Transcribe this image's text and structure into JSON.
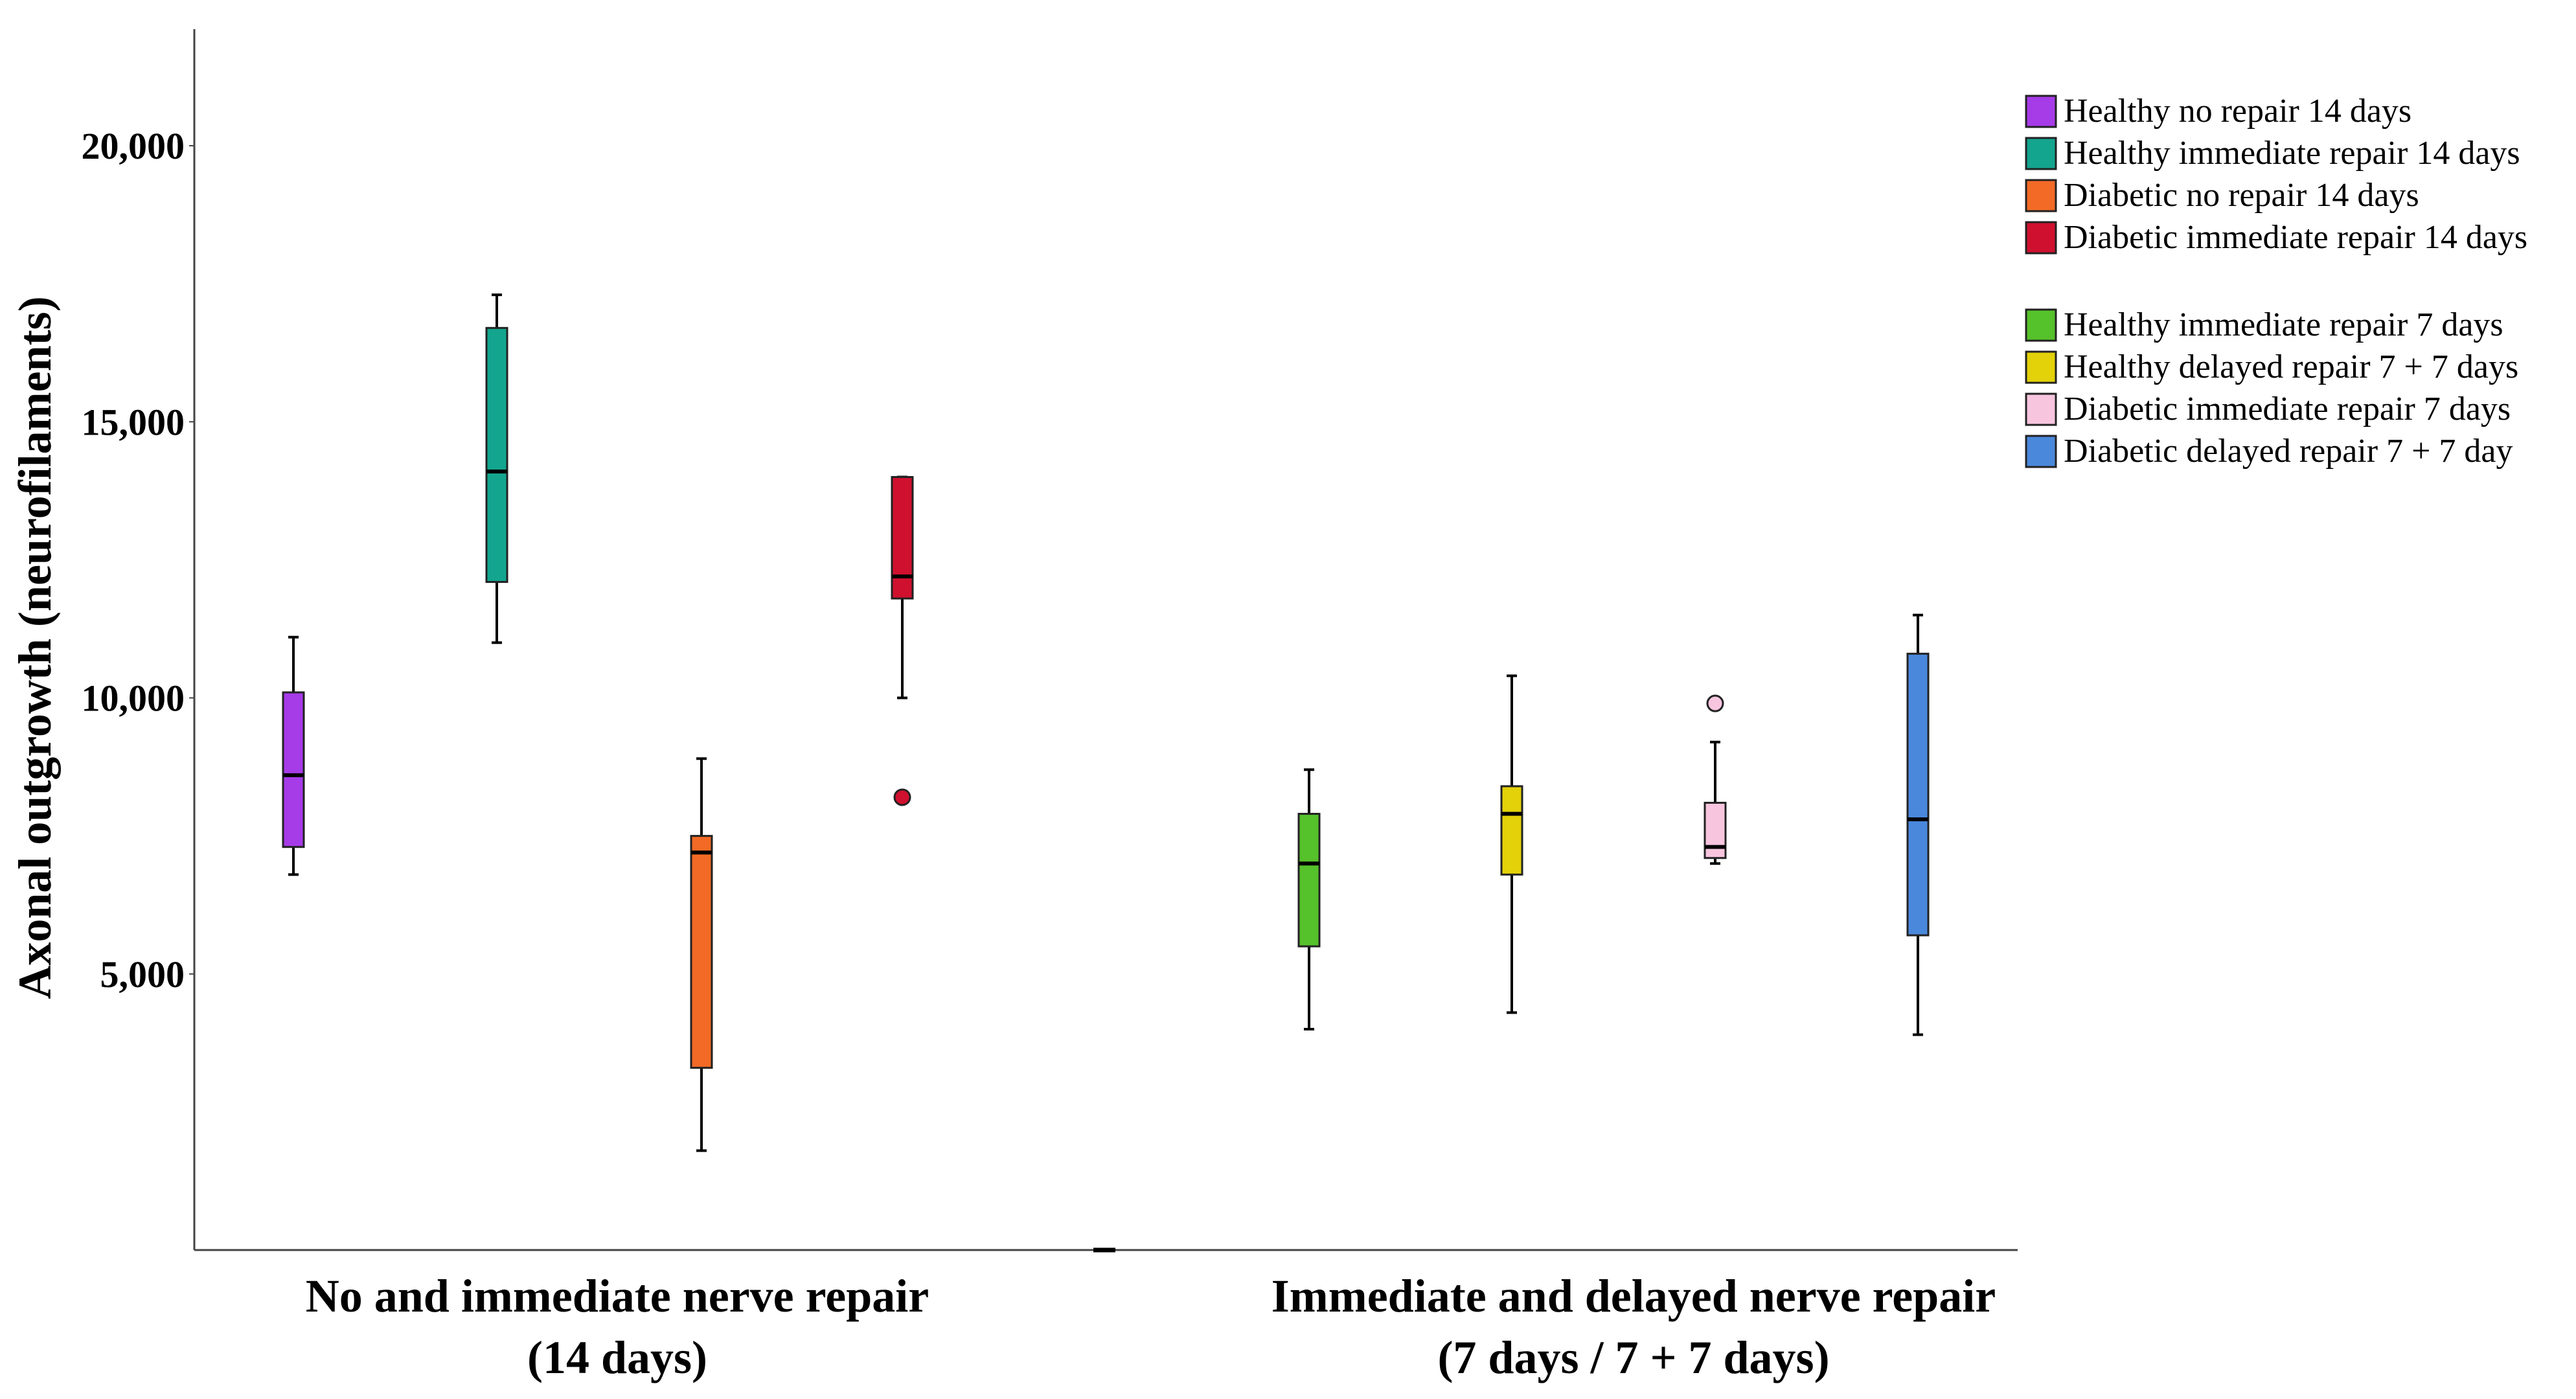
{
  "chart_data": {
    "type": "box",
    "title": "",
    "ylabel": "Axonal outgrowth (neurofilaments)",
    "ylim": [
      0,
      22000
    ],
    "yticks": [
      5000,
      10000,
      15000,
      20000
    ],
    "ytick_labels": [
      "5,000",
      "10,000",
      "15,000",
      "20,000"
    ],
    "groups": [
      {
        "line1": "No and immediate nerve repair",
        "line2": "(14 days)"
      },
      {
        "line1": "Immediate and delayed nerve repair",
        "line2": "(7 days / 7 + 7 days)"
      }
    ],
    "legend_position": "top-right",
    "series": [
      {
        "name": "Healthy no repair 14 days",
        "color": "#A63BE8",
        "group": 0,
        "whisker_low": 6800,
        "q1": 7300,
        "median": 8600,
        "q3": 10100,
        "whisker_high": 11100,
        "outliers": []
      },
      {
        "name": "Healthy immediate repair 14 days",
        "color": "#13A58E",
        "group": 0,
        "whisker_low": 11000,
        "q1": 12100,
        "median": 14100,
        "q3": 16700,
        "whisker_high": 17300,
        "outliers": []
      },
      {
        "name": "Diabetic no repair 14 days",
        "color": "#F26A25",
        "group": 0,
        "whisker_low": 1800,
        "q1": 3300,
        "median": 7200,
        "q3": 7500,
        "whisker_high": 8900,
        "outliers": []
      },
      {
        "name": "Diabetic immediate repair 14 days",
        "color": "#D0102F",
        "group": 0,
        "whisker_low": 10000,
        "q1": 11800,
        "median": 12200,
        "q3": 14000,
        "whisker_high": 14000,
        "outliers": [
          8200
        ]
      },
      {
        "name": "Healthy immediate repair 7 days",
        "color": "#55C12B",
        "group": 1,
        "whisker_low": 4000,
        "q1": 5500,
        "median": 7000,
        "q3": 7900,
        "whisker_high": 8700,
        "outliers": []
      },
      {
        "name": "Healthy delayed repair 7 + 7 days",
        "color": "#E3D10A",
        "group": 1,
        "whisker_low": 4300,
        "q1": 6800,
        "median": 7900,
        "q3": 8400,
        "whisker_high": 10400,
        "outliers": []
      },
      {
        "name": "Diabetic immediate repair 7 days",
        "color": "#F8C5DF",
        "group": 1,
        "whisker_low": 7000,
        "q1": 7100,
        "median": 7300,
        "q3": 8100,
        "whisker_high": 9200,
        "outliers": [
          9900
        ]
      },
      {
        "name": "Diabetic delayed repair 7 + 7 day",
        "color": "#4A88DC",
        "group": 1,
        "whisker_low": 3900,
        "q1": 5700,
        "median": 7800,
        "q3": 10800,
        "whisker_high": 11500,
        "outliers": []
      }
    ]
  }
}
